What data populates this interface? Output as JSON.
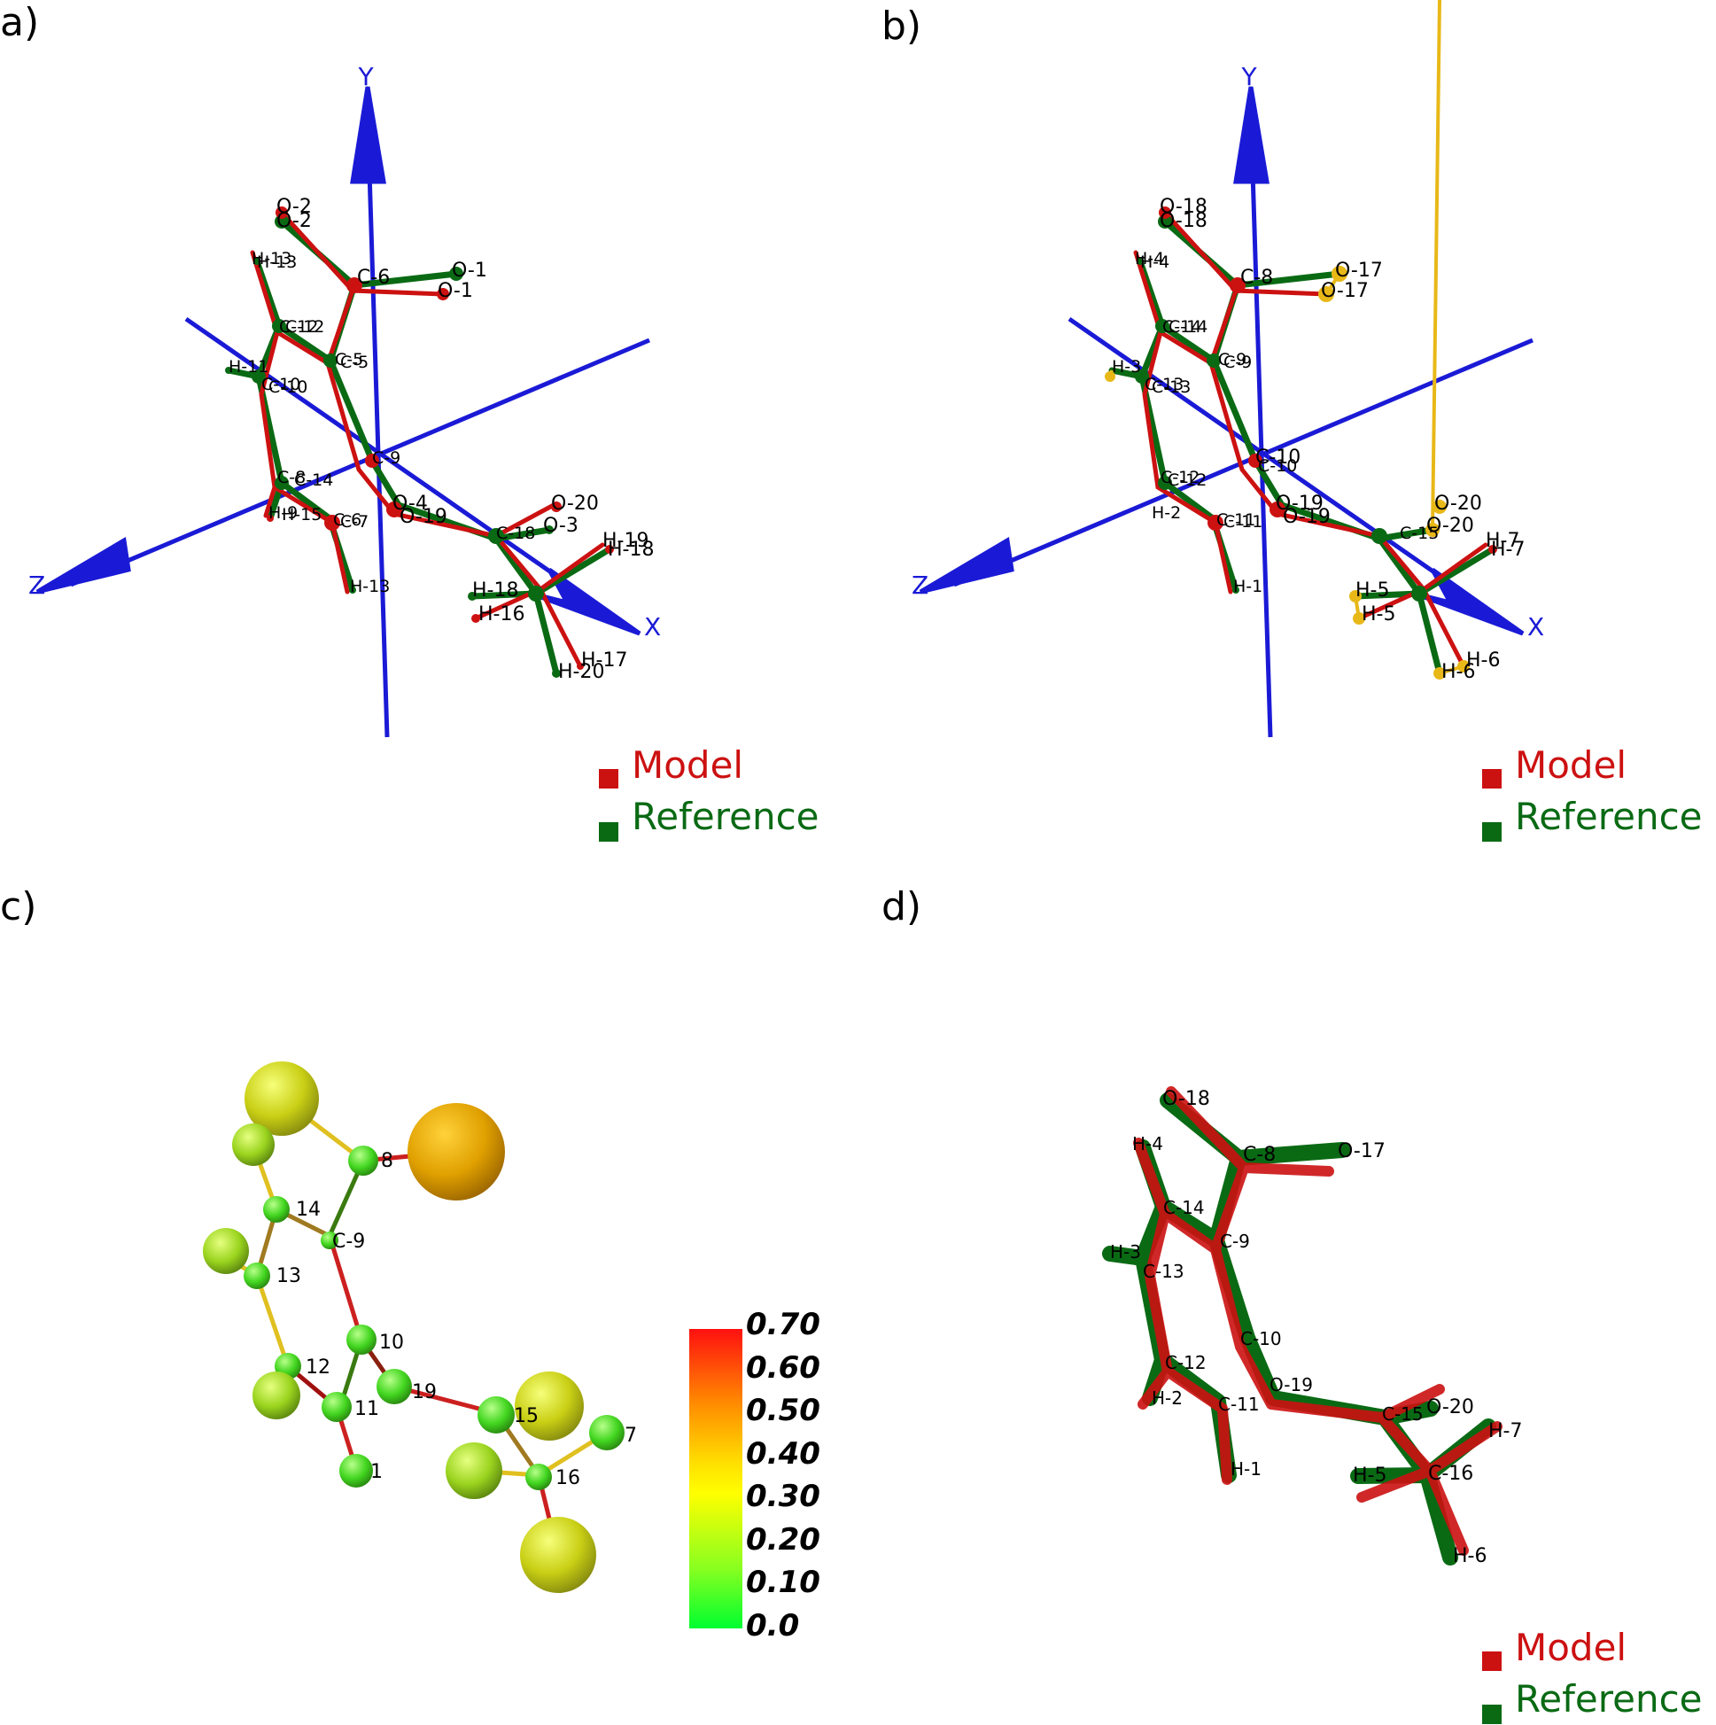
{
  "panels": {
    "a": {
      "label": "a)",
      "axes": {
        "x": "X",
        "y": "Y",
        "z": "Z"
      },
      "atom_labels": [
        "O-2",
        "O-2",
        "H-13",
        "H-13",
        "C-6",
        "O-1",
        "O-1",
        "C-12",
        "C-12",
        "C-5",
        "C-5",
        "H-11",
        "C-10",
        "C-10",
        "C-9",
        "C-8",
        "C-14",
        "H-9",
        "H-15",
        "C-6",
        "C-7",
        "O-4",
        "O-19",
        "O-20",
        "O-3",
        "C-18",
        "H-19",
        "H-18",
        "H-19",
        "H-18",
        "H-16",
        "H-20",
        "H-17",
        "H-13",
        "H-13"
      ],
      "legend": {
        "model": "Model",
        "reference": "Reference"
      }
    },
    "b": {
      "label": "b)",
      "axes": {
        "x": "X",
        "y": "Y",
        "z": "Z"
      },
      "atom_labels": [
        "O-18",
        "O-18",
        "H-4",
        "H-4",
        "C-8",
        "O-17",
        "O-17",
        "C-14",
        "C-14",
        "C-9",
        "C-9",
        "H-3",
        "C-13",
        "C-13",
        "C-10",
        "C-10",
        "C-12",
        "C-12",
        "H-2",
        "C-11",
        "C-11",
        "O-19",
        "O-19",
        "O-20",
        "O-20",
        "C-15",
        "H-7",
        "H-7",
        "H-5",
        "H-5",
        "H-6",
        "H-6",
        "H-1"
      ],
      "legend": {
        "model": "Model",
        "reference": "Reference"
      }
    },
    "c": {
      "label": "c)",
      "atom_labels": [
        "8",
        "14",
        "C-9",
        "13",
        "10",
        "12",
        "19",
        "11",
        "15",
        "7",
        "16",
        "1"
      ],
      "colorbar": {
        "ticks": [
          "0.70",
          "0.60",
          "0.50",
          "0.40",
          "0.30",
          "0.20",
          "0.10",
          "0.0"
        ]
      }
    },
    "d": {
      "label": "d)",
      "atom_labels": [
        "O-18",
        "C-8",
        "O-17",
        "H-4",
        "C-14",
        "C-9",
        "H-3",
        "C-13",
        "C-10",
        "C-12",
        "O-19",
        "H-2",
        "C-11",
        "C-15",
        "O-20",
        "H-7",
        "H-1",
        "H-5",
        "C-16",
        "H-6"
      ],
      "legend": {
        "model": "Model",
        "reference": "Reference"
      }
    }
  },
  "colors": {
    "model": "#cc1111",
    "reference": "#0a6a14",
    "axis": "#1a1ad6",
    "highlight": "#e8b818"
  }
}
